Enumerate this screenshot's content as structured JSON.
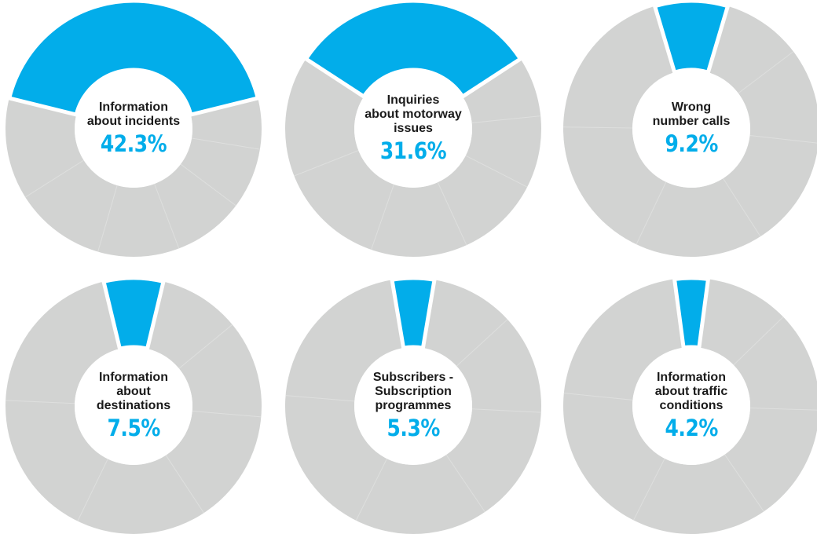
{
  "colors": {
    "highlight": "#02ADEA",
    "segment": "#D2D3D2",
    "divider": "#DEDFDE",
    "text": "#1a1a1a"
  },
  "chart_data": [
    {
      "type": "pie",
      "style": "donut",
      "label": "Information\nabout incidents",
      "value_label": "42.3%",
      "value": 42.3,
      "rest_value": 57.7
    },
    {
      "type": "pie",
      "style": "donut",
      "label": "Inquiries\nabout motorway\nissues",
      "value_label": "31.6%",
      "value": 31.6,
      "rest_value": 68.4
    },
    {
      "type": "pie",
      "style": "donut",
      "label": "Wrong\nnumber calls",
      "value_label": "9.2%",
      "value": 9.2,
      "rest_value": 90.8
    },
    {
      "type": "pie",
      "style": "donut",
      "label": "Information\nabout\ndestinations",
      "value_label": "7.5%",
      "value": 7.5,
      "rest_value": 92.5
    },
    {
      "type": "pie",
      "style": "donut",
      "label": "Subscribers -\nSubscription\nprogrammes",
      "value_label": "5.3%",
      "value": 5.3,
      "rest_value": 94.7
    },
    {
      "type": "pie",
      "style": "donut",
      "label": "Information\nabout traffic\nconditions",
      "value_label": "4.2%",
      "value": 4.2,
      "rest_value": 95.8
    }
  ]
}
